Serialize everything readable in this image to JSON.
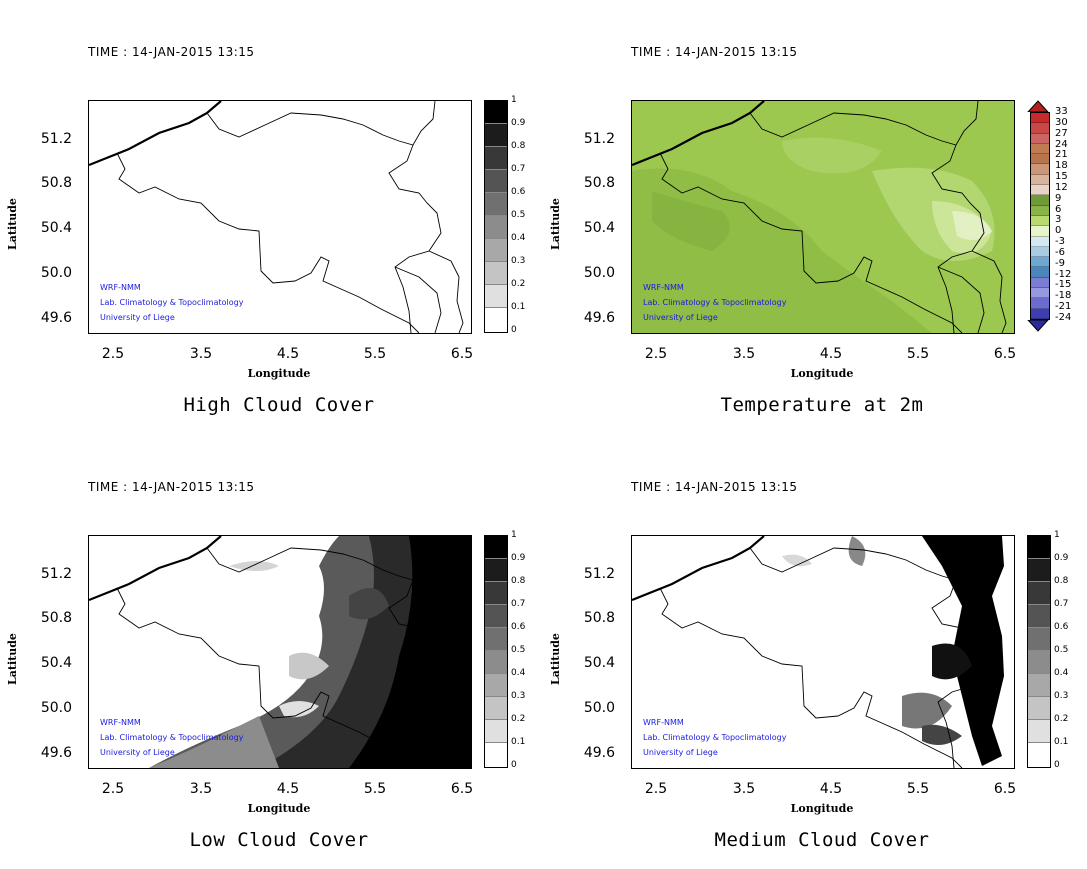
{
  "panels": [
    {
      "time": "TIME : 14-JAN-2015 13:15",
      "title": "High Cloud Cover",
      "ylabel": "Latitude",
      "xlabel": "Longitude"
    },
    {
      "time": "TIME : 14-JAN-2015 13:15",
      "title": "Temperature at 2m",
      "ylabel": "Latitude",
      "xlabel": "Longitude"
    },
    {
      "time": "TIME : 14-JAN-2015 13:15",
      "title": "Low Cloud Cover",
      "ylabel": "Latitude",
      "xlabel": "Longitude"
    },
    {
      "time": "TIME : 14-JAN-2015 13:15",
      "title": "Medium Cloud Cover",
      "ylabel": "Latitude",
      "xlabel": "Longitude"
    }
  ],
  "credits": {
    "line1": "WRF-NMM",
    "line2": "Lab. Climatology & Topoclimatology",
    "line3": "University of Liege"
  },
  "y_ticks": [
    "51.2",
    "50.8",
    "50.4",
    "50.0",
    "49.6"
  ],
  "x_ticks": [
    "2.5",
    "3.5",
    "4.5",
    "5.5",
    "6.5"
  ],
  "cloud_scale": [
    "1",
    "0.9",
    "0.8",
    "0.7",
    "0.6",
    "0.5",
    "0.4",
    "0.3",
    "0.2",
    "0.1",
    "0"
  ],
  "temp_scale": [
    "33",
    "30",
    "27",
    "24",
    "21",
    "18",
    "15",
    "12",
    "9",
    "6",
    "3",
    "0",
    "-3",
    "-6",
    "-9",
    "-12",
    "-15",
    "-18",
    "-21",
    "-24"
  ],
  "temp_colors": [
    "#c62a2a",
    "#c84848",
    "#cc6464",
    "#c27a52",
    "#b8744c",
    "#c89878",
    "#d8b49c",
    "#e8d4c6",
    "#6f9a3a",
    "#8ab448",
    "#b8d870",
    "#e6f4cc",
    "#d4e8f4",
    "#a8cce4",
    "#6ea8d0",
    "#4a86bc",
    "#7c7cd4",
    "#9898e0",
    "#6c6ccc",
    "#3e3eb0"
  ]
}
